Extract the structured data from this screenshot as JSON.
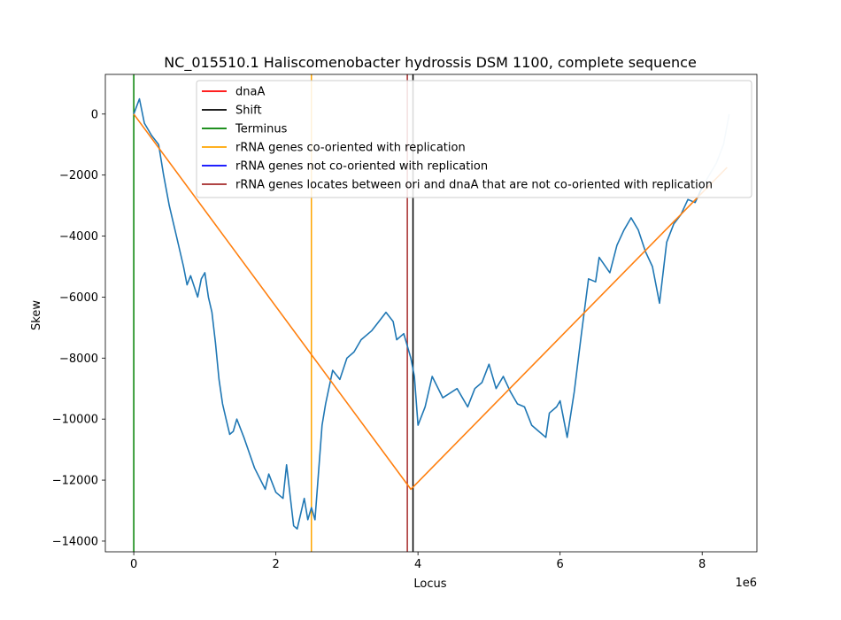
{
  "chart_data": {
    "type": "line",
    "title": "NC_015510.1 Haliscomenobacter hydrossis DSM 1100, complete sequence",
    "xlabel": "Locus",
    "ylabel": "Skew",
    "x_offset_label": "1e6",
    "xlim": [
      -400000,
      8770000
    ],
    "ylim": [
      -14350,
      1300
    ],
    "x_ticks": [
      0,
      2000000,
      4000000,
      6000000,
      8000000
    ],
    "x_tick_labels": [
      "0",
      "2",
      "4",
      "6",
      "8"
    ],
    "y_ticks": [
      0,
      -2000,
      -4000,
      -6000,
      -8000,
      -10000,
      -12000,
      -14000
    ],
    "y_tick_labels": [
      "0",
      "−2000",
      "−4000",
      "−6000",
      "−8000",
      "−10000",
      "−12000",
      "−14000"
    ],
    "legend_position": "upper-right",
    "legend": [
      {
        "label": "dnaA",
        "color": "#ff0000"
      },
      {
        "label": "Shift",
        "color": "#000000"
      },
      {
        "label": "Terminus",
        "color": "#008000"
      },
      {
        "label": "rRNA genes co-oriented with replication",
        "color": "#ffa500"
      },
      {
        "label": "rRNA genes not co-oriented with replication",
        "color": "#0000ff"
      },
      {
        "label": "rRNA genes locates between ori and dnaA that are not co-oriented with replication",
        "color": "#a52a2a"
      }
    ],
    "vertical_lines": [
      {
        "name": "Terminus",
        "x": 0,
        "color": "#008000"
      },
      {
        "name": "rRNA genes co-oriented with replication",
        "x": 2500000,
        "color": "#ffa500"
      },
      {
        "name": "rRNA genes locates between ori and dnaA that are not co-oriented with replication",
        "x": 3850000,
        "color": "#a52a2a"
      },
      {
        "name": "Shift",
        "x": 3930000,
        "color": "#000000"
      }
    ],
    "series": [
      {
        "kind": "skew",
        "color": "#1f77b4",
        "x": [
          0,
          80000,
          150000,
          250000,
          350000,
          420000,
          500000,
          600000,
          700000,
          750000,
          800000,
          900000,
          950000,
          1000000,
          1050000,
          1100000,
          1150000,
          1200000,
          1250000,
          1300000,
          1350000,
          1400000,
          1450000,
          1550000,
          1700000,
          1850000,
          1900000,
          2000000,
          2100000,
          2150000,
          2200000,
          2250000,
          2300000,
          2350000,
          2400000,
          2450000,
          2500000,
          2550000,
          2650000,
          2700000,
          2800000,
          2900000,
          3000000,
          3100000,
          3200000,
          3350000,
          3450000,
          3550000,
          3650000,
          3700000,
          3800000,
          3900000,
          3950000,
          4000000,
          4100000,
          4200000,
          4350000,
          4550000,
          4700000,
          4800000,
          4900000,
          5000000,
          5100000,
          5200000,
          5300000,
          5400000,
          5500000,
          5600000,
          5700000,
          5800000,
          5850000,
          5950000,
          6000000,
          6100000,
          6200000,
          6300000,
          6400000,
          6500000,
          6550000,
          6700000,
          6800000,
          6900000,
          7000000,
          7100000,
          7200000,
          7300000,
          7400000,
          7500000,
          7600000,
          7700000,
          7800000,
          7900000,
          8000000
        ],
        "y": [
          0,
          500,
          -300,
          -700,
          -1000,
          -2000,
          -3000,
          -4000,
          -5000,
          -5600,
          -5300,
          -6000,
          -5400,
          -5200,
          -6000,
          -6500,
          -7500,
          -8700,
          -9500,
          -10000,
          -10500,
          -10400,
          -10000,
          -10600,
          -11600,
          -12300,
          -11800,
          -12400,
          -12600,
          -11500,
          -12500,
          -13500,
          -13600,
          -13100,
          -12600,
          -13300,
          -12900,
          -13300,
          -10200,
          -9500,
          -8400,
          -8700,
          -8000,
          -7800,
          -7400,
          -7100,
          -6800,
          -6500,
          -6800,
          -7400,
          -7200,
          -8000,
          -8600,
          -10200,
          -9600,
          -8600,
          -9300,
          -9000,
          -9600,
          -9000,
          -8800,
          -8200,
          -9000,
          -8600,
          -9100,
          -9500,
          -9600,
          -10200,
          -10400,
          -10600,
          -9800,
          -9600,
          -9400,
          -10600,
          -9100,
          -7200,
          -5400,
          -5500,
          -4700,
          -5200,
          -4300,
          -3800,
          -3400,
          -3800,
          -4500,
          -5000,
          -6200,
          -4200,
          -3600,
          -3300,
          -2800,
          -2900,
          -2400
        ]
      },
      {
        "kind": "skew-tail",
        "color": "#b9d6ec",
        "x": [
          8000000,
          8100000,
          8200000,
          8300000,
          8380000
        ],
        "y": [
          -2400,
          -2000,
          -1600,
          -1000,
          0
        ]
      },
      {
        "kind": "fit",
        "color": "#ff7f0e",
        "x": [
          0,
          3900000,
          8350000
        ],
        "y": [
          0,
          -12300,
          -1750
        ]
      }
    ]
  }
}
